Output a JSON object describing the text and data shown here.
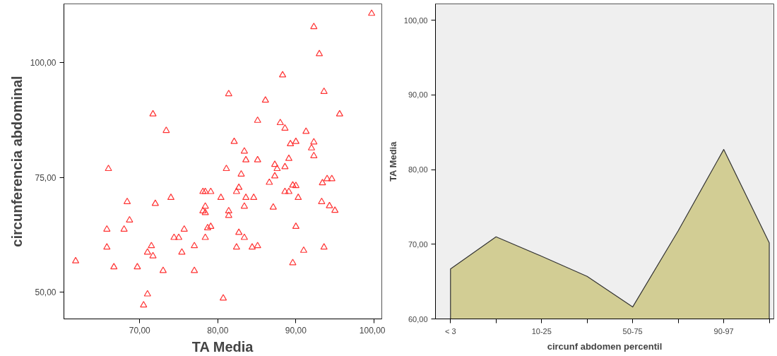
{
  "chart_data": [
    {
      "type": "scatter",
      "xlabel": "TA Media",
      "ylabel": "circunferencia abdominal",
      "marker": "triangle",
      "grid": false,
      "xlim": [
        60.3,
        101.0
      ],
      "ylim": [
        44.2,
        112.8
      ],
      "xticks": [
        {
          "value": 70,
          "label": "70,00"
        },
        {
          "value": 80,
          "label": "80,00"
        },
        {
          "value": 90,
          "label": "90,00"
        },
        {
          "value": 100,
          "label": "100,00"
        }
      ],
      "yticks": [
        {
          "value": 50,
          "label": "50,00"
        },
        {
          "value": 75,
          "label": "75,00"
        },
        {
          "value": 100,
          "label": "100,00"
        }
      ],
      "series": [
        {
          "color": "#ff3333",
          "x": [
            99.7,
            92.3,
            93.0,
            88.3,
            81.4,
            93.6,
            86.1,
            71.7,
            95.6,
            73.4,
            85.1,
            88.0,
            88.6,
            91.3,
            82.1,
            89.3,
            90.0,
            92.3,
            92.0,
            92.3,
            83.4,
            83.6,
            85.1,
            89.1,
            66.0,
            81.1,
            83.0,
            87.3,
            87.6,
            88.6,
            87.3,
            86.6,
            93.4,
            94.0,
            94.6,
            89.6,
            90.0,
            88.6,
            89.1,
            90.3,
            78.1,
            78.4,
            79.1,
            82.7,
            82.4,
            80.4,
            83.6,
            84.6,
            74.0,
            68.4,
            72.0,
            93.3,
            94.3,
            95.0,
            87.1,
            83.4,
            78.4,
            78.1,
            78.4,
            81.4,
            81.4,
            68.7,
            65.8,
            68.0,
            75.7,
            78.7,
            79.1,
            90.0,
            82.7,
            83.4,
            74.4,
            75.0,
            78.4,
            65.8,
            71.5,
            71.0,
            71.7,
            75.4,
            77.0,
            82.4,
            84.4,
            85.1,
            91.0,
            93.6,
            61.8,
            66.7,
            69.7,
            73.0,
            77.0,
            89.6,
            71.0,
            70.5,
            80.7
          ],
          "values": [
            110.7,
            107.8,
            101.9,
            97.3,
            93.2,
            93.7,
            91.8,
            88.8,
            88.8,
            85.2,
            87.4,
            86.9,
            85.7,
            85.0,
            82.8,
            82.3,
            82.8,
            82.7,
            81.4,
            79.7,
            80.7,
            78.8,
            78.8,
            79.1,
            76.9,
            76.9,
            75.7,
            77.8,
            76.9,
            77.3,
            75.3,
            73.9,
            73.8,
            74.7,
            74.7,
            73.3,
            73.2,
            71.9,
            71.9,
            70.6,
            71.9,
            71.9,
            71.9,
            72.8,
            71.9,
            70.6,
            70.6,
            70.6,
            70.6,
            69.7,
            69.3,
            69.7,
            68.8,
            67.8,
            68.5,
            68.7,
            68.7,
            67.7,
            67.3,
            67.7,
            66.7,
            65.7,
            63.7,
            63.7,
            63.7,
            64.0,
            64.3,
            64.3,
            63.0,
            61.9,
            61.9,
            61.9,
            61.9,
            59.8,
            60.1,
            58.7,
            57.9,
            58.7,
            60.1,
            59.8,
            59.8,
            60.1,
            59.1,
            59.8,
            56.8,
            55.5,
            55.5,
            54.7,
            54.7,
            56.4,
            49.6,
            47.2,
            48.7
          ]
        }
      ]
    },
    {
      "type": "area",
      "xlabel": "circunf abdomen percentil",
      "ylabel": "TA Media",
      "grid": false,
      "categories": [
        "< 3",
        null,
        "10-25",
        null,
        "50-75",
        null,
        "90-97",
        null
      ],
      "ylim": [
        60,
        102.2
      ],
      "yticks": [
        {
          "value": 60,
          "label": "60,00"
        },
        {
          "value": 70,
          "label": "70,00"
        },
        {
          "value": 80,
          "label": "80,00"
        },
        {
          "value": 90,
          "label": "90,00"
        },
        {
          "value": 100,
          "label": "100,00"
        }
      ],
      "series": [
        {
          "color": "#d2cd94",
          "values": [
            66.7,
            71.0,
            68.4,
            65.7,
            61.6,
            71.8,
            82.7,
            70.2
          ]
        }
      ]
    }
  ]
}
